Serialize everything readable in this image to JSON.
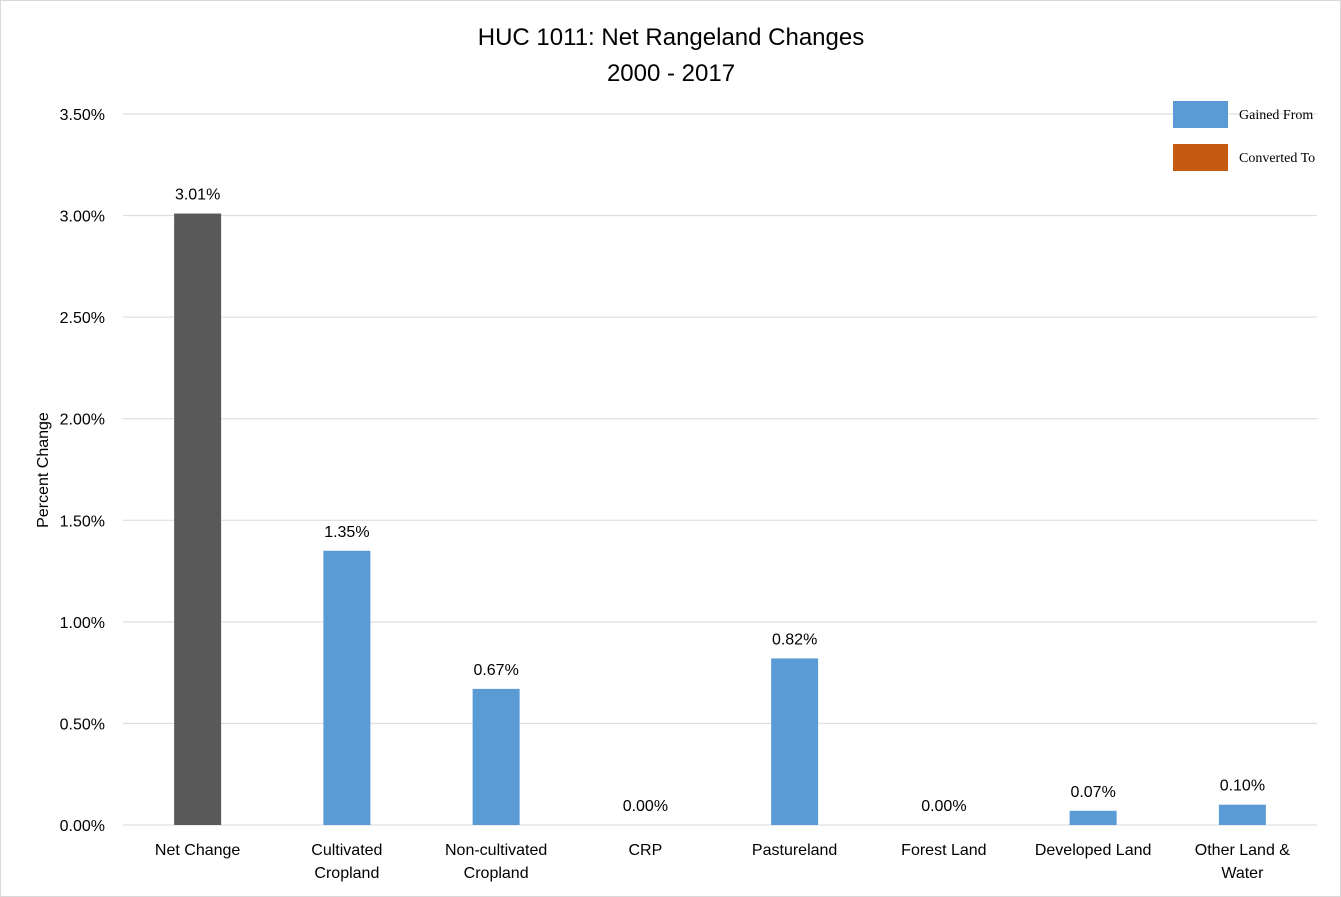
{
  "chart_data": {
    "type": "bar",
    "title": "HUC 1011: Net Rangeland Changes",
    "subtitle": "2000 - 2017",
    "xlabel": "",
    "ylabel": "Percent Change",
    "ylim": [
      0,
      3.5
    ],
    "y_ticks": [
      "0.00%",
      "0.50%",
      "1.00%",
      "1.50%",
      "2.00%",
      "2.50%",
      "3.00%",
      "3.50%"
    ],
    "y_tick_values": [
      0,
      0.5,
      1.0,
      1.5,
      2.0,
      2.5,
      3.0,
      3.5
    ],
    "grid": true,
    "legend_position": "top-right",
    "legend": [
      {
        "name": "Gained From",
        "color": "#5b9bd5"
      },
      {
        "name": "Converted To",
        "color": "#c55a11"
      }
    ],
    "categories": [
      [
        "Net Change"
      ],
      [
        "Cultivated",
        "Cropland"
      ],
      [
        "Non-cultivated",
        "Cropland"
      ],
      [
        "CRP"
      ],
      [
        "Pastureland"
      ],
      [
        "Forest Land"
      ],
      [
        "Developed Land"
      ],
      [
        "Other Land &",
        "Water"
      ]
    ],
    "values": [
      3.01,
      1.35,
      0.67,
      0.0,
      0.82,
      0.0,
      0.07,
      0.1
    ],
    "data_labels": [
      "3.01%",
      "1.35%",
      "0.67%",
      "0.00%",
      "0.82%",
      "0.00%",
      "0.07%",
      "0.10%"
    ],
    "bar_colors": [
      "#595959",
      "#5b9bd5",
      "#5b9bd5",
      "#5b9bd5",
      "#5b9bd5",
      "#5b9bd5",
      "#5b9bd5",
      "#5b9bd5"
    ]
  }
}
